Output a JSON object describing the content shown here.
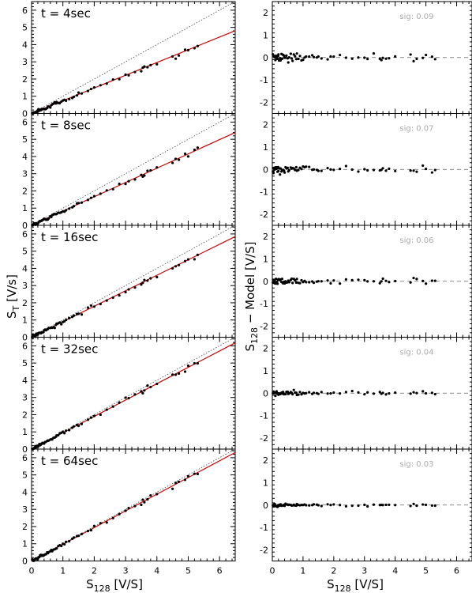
{
  "figure": {
    "left_ylabel": "S",
    "left_ylabel_sub": "T",
    "left_ylabel_unit": "[V/s]",
    "right_ylabel": "S",
    "right_ylabel_sub": "128",
    "right_ylabel_rest": " − Model [V/S]",
    "xlabel": "S",
    "xlabel_sub": "128",
    "xlabel_unit": "[V/S]"
  },
  "chart_data": [
    {
      "type": "scatter",
      "panel": "left",
      "title": "t = 4sec",
      "x_range": [
        0,
        6.5
      ],
      "y_range": [
        0,
        6.5
      ],
      "xticks": [
        0,
        1,
        2,
        3,
        4,
        5,
        6
      ],
      "yticks": [
        0,
        1,
        2,
        3,
        4,
        5,
        6
      ],
      "fit_slope": 0.74,
      "identity_line": true,
      "fit_color": "#cc0000"
    },
    {
      "type": "scatter",
      "panel": "left",
      "title": "t = 8sec",
      "x_range": [
        0,
        6.5
      ],
      "y_range": [
        0,
        6.5
      ],
      "xticks": [
        0,
        1,
        2,
        3,
        4,
        5,
        6
      ],
      "yticks": [
        0,
        1,
        2,
        3,
        4,
        5,
        6
      ],
      "fit_slope": 0.83,
      "identity_line": true,
      "fit_color": "#cc0000"
    },
    {
      "type": "scatter",
      "panel": "left",
      "title": "t = 16sec",
      "x_range": [
        0,
        6.5
      ],
      "y_range": [
        0,
        6.5
      ],
      "xticks": [
        0,
        1,
        2,
        3,
        4,
        5,
        6
      ],
      "yticks": [
        0,
        1,
        2,
        3,
        4,
        5,
        6
      ],
      "fit_slope": 0.9,
      "identity_line": true,
      "fit_color": "#cc0000"
    },
    {
      "type": "scatter",
      "panel": "left",
      "title": "t = 32sec",
      "x_range": [
        0,
        6.5
      ],
      "y_range": [
        0,
        6.5
      ],
      "xticks": [
        0,
        1,
        2,
        3,
        4,
        5,
        6
      ],
      "yticks": [
        0,
        1,
        2,
        3,
        4,
        5,
        6
      ],
      "fit_slope": 0.95,
      "identity_line": true,
      "fit_color": "#cc0000"
    },
    {
      "type": "scatter",
      "panel": "left",
      "title": "t = 64sec",
      "x_range": [
        0,
        6.5
      ],
      "y_range": [
        0,
        6.5
      ],
      "xticks": [
        0,
        1,
        2,
        3,
        4,
        5,
        6
      ],
      "yticks": [
        0,
        1,
        2,
        3,
        4,
        5,
        6
      ],
      "fit_slope": 0.97,
      "identity_line": true,
      "fit_color": "#cc0000"
    },
    {
      "type": "scatter",
      "panel": "right",
      "annotation": "sig: 0.09",
      "x_range": [
        0,
        6.5
      ],
      "y_range": [
        -2.5,
        2.5
      ],
      "xticks": [
        0,
        1,
        2,
        3,
        4,
        5,
        6
      ],
      "yticks": [
        -2,
        -1,
        0,
        1,
        2
      ],
      "zero_line": true,
      "scatter_sigma": 0.15
    },
    {
      "type": "scatter",
      "panel": "right",
      "annotation": "sig: 0.07",
      "x_range": [
        0,
        6.5
      ],
      "y_range": [
        -2.5,
        2.5
      ],
      "xticks": [
        0,
        1,
        2,
        3,
        4,
        5,
        6
      ],
      "yticks": [
        -2,
        -1,
        0,
        1,
        2
      ],
      "zero_line": true,
      "scatter_sigma": 0.12
    },
    {
      "type": "scatter",
      "panel": "right",
      "annotation": "sig: 0.06",
      "x_range": [
        0,
        6.5
      ],
      "y_range": [
        -2.5,
        2.5
      ],
      "xticks": [
        0,
        1,
        2,
        3,
        4,
        5,
        6
      ],
      "yticks": [
        -2,
        -1,
        0,
        1,
        2
      ],
      "zero_line": true,
      "scatter_sigma": 0.1
    },
    {
      "type": "scatter",
      "panel": "right",
      "annotation": "sig: 0.04",
      "x_range": [
        0,
        6.5
      ],
      "y_range": [
        -2.5,
        2.5
      ],
      "xticks": [
        0,
        1,
        2,
        3,
        4,
        5,
        6
      ],
      "yticks": [
        -2,
        -1,
        0,
        1,
        2
      ],
      "zero_line": true,
      "scatter_sigma": 0.07
    },
    {
      "type": "scatter",
      "panel": "right",
      "annotation": "sig: 0.03",
      "x_range": [
        0,
        6.5
      ],
      "y_range": [
        -2.5,
        2.5
      ],
      "xticks": [
        0,
        1,
        2,
        3,
        4,
        5,
        6
      ],
      "yticks": [
        -2,
        -1,
        0,
        1,
        2
      ],
      "zero_line": true,
      "scatter_sigma": 0.05
    }
  ],
  "data_points_x": [
    0.02,
    0.04,
    0.05,
    0.07,
    0.08,
    0.1,
    0.12,
    0.14,
    0.15,
    0.17,
    0.19,
    0.2,
    0.22,
    0.25,
    0.27,
    0.3,
    0.32,
    0.35,
    0.38,
    0.4,
    0.43,
    0.46,
    0.5,
    0.52,
    0.55,
    0.6,
    0.63,
    0.66,
    0.7,
    0.74,
    0.78,
    0.8,
    0.85,
    0.9,
    0.95,
    1.0,
    1.05,
    1.1,
    1.2,
    1.3,
    1.35,
    1.45,
    1.5,
    1.6,
    1.8,
    1.9,
    2.0,
    2.2,
    2.4,
    2.6,
    2.8,
    3.0,
    3.1,
    3.3,
    3.5,
    3.55,
    3.6,
    3.7,
    3.8,
    4.0,
    4.5,
    4.6,
    4.7,
    4.9,
    5.0,
    5.2,
    5.3
  ]
}
